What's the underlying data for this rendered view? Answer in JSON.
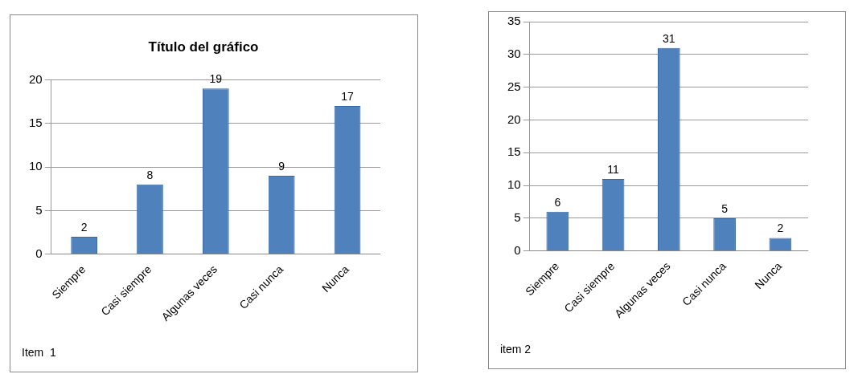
{
  "chart_data": [
    {
      "type": "bar",
      "title": "Título del gráfico",
      "categories": [
        "Siempre",
        "Casi siempre",
        "Algunas veces",
        "Casi nunca",
        "Nunca"
      ],
      "values": [
        2,
        8,
        19,
        9,
        17
      ],
      "color": "#4f81bd",
      "ylim": [
        0,
        20
      ],
      "yticks": [
        0,
        5,
        10,
        15,
        20
      ],
      "grid": "y",
      "data_labels": true,
      "annotations": [
        "Item  1"
      ]
    },
    {
      "type": "bar",
      "categories": [
        "Siempre",
        "Casi siempre",
        "Algunas veces",
        "Casi nunca",
        "Nunca"
      ],
      "values": [
        6,
        11,
        31,
        5,
        2
      ],
      "color": "#4f81bd",
      "ylim": [
        0,
        35
      ],
      "yticks": [
        0,
        5,
        10,
        15,
        20,
        25,
        30,
        35
      ],
      "grid": "y",
      "data_labels": true,
      "annotations": [
        "item 2"
      ]
    }
  ]
}
